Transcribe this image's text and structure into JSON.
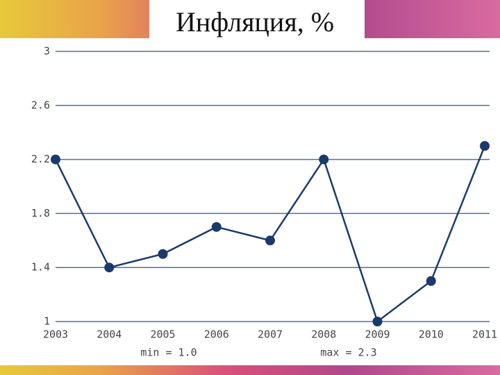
{
  "chart_data": {
    "type": "line",
    "title": "Инфляция, %",
    "categories": [
      "2003",
      "2004",
      "2005",
      "2006",
      "2007",
      "2008",
      "2009",
      "2010",
      "2011"
    ],
    "values": [
      2.2,
      1.4,
      1.5,
      1.7,
      1.6,
      2.2,
      1.0,
      1.3,
      2.3
    ],
    "color": "#1b3a6b",
    "ylim": [
      1,
      3
    ],
    "yticks": [
      1,
      1.4,
      1.8,
      2.2,
      2.6,
      3
    ],
    "grid": true,
    "annotations": [
      "min = 1.0",
      "max = 2.3"
    ]
  }
}
